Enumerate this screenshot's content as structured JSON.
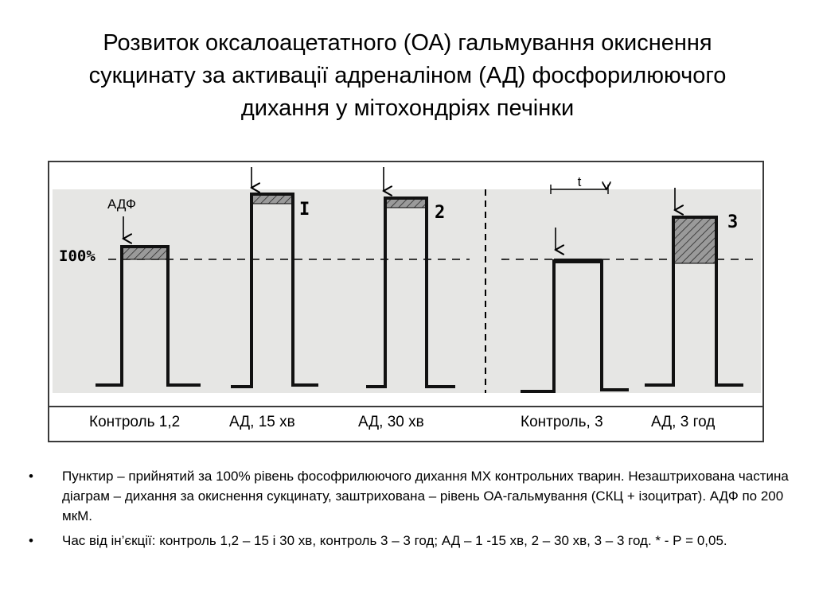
{
  "title": {
    "lines": [
      "Розвиток оксалоацетатного (ОА) гальмування окиснення",
      "сукцинату за активації адреналіном (АД) фосфорилюючого",
      "дихання у мітохондріях печінки"
    ]
  },
  "figure": {
    "adp_label": "АДФ",
    "level_label": "I00%",
    "time_label": "t",
    "trace_labels": [
      "I",
      "2",
      "3"
    ],
    "captions": [
      "Контроль 1,2",
      "АД, 15 хв",
      "АД, 30 хв",
      "Контроль, 3",
      "АД, 3 год"
    ],
    "hatch_color": "#888888",
    "photo_background": "#e6e6e4"
  },
  "notes": [
    "Пунктир – прийнятий за 100% рівень фософрилюючого дихання МХ контрольних тварин. Незаштрихована частина діаграм – дихання за окиснення сукцинату, заштрихована – рівень ОА-гальмування (СКЦ + ізоцитрат). АДФ по 200 мкМ.",
    "Час від ін’єкції: контроль 1,2 – 15 і 30 хв, контроль 3 – 3 год; АД – 1 -15 хв, 2 – 30 хв, 3 – 3 год. * - Р = 0,05."
  ],
  "bullet_symbol": "•"
}
